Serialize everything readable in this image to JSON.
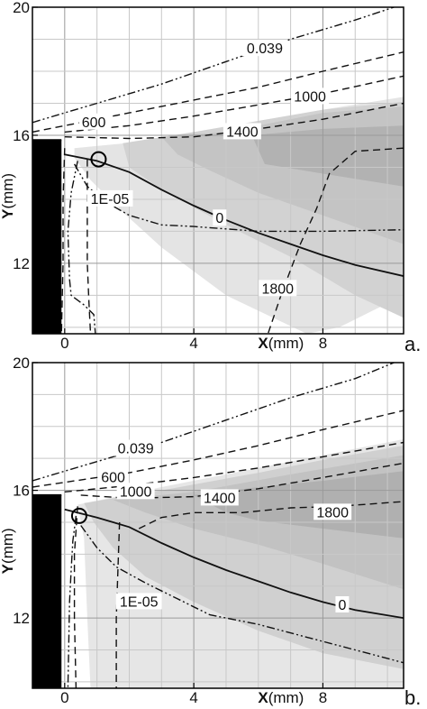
{
  "chart_data": [
    {
      "panel_label": "a.",
      "type": "contour",
      "xlabel": {
        "symbol": "X",
        "unit": "(mm)"
      },
      "ylabel": {
        "symbol": "Y",
        "unit": "(mm)"
      },
      "xlim": [
        -1,
        10.5
      ],
      "ylim": [
        9.8,
        20
      ],
      "x_ticks": [
        0,
        4,
        8
      ],
      "y_ticks": [
        12,
        16,
        20
      ],
      "grid": true,
      "solid_wall": {
        "x_max": -0.1,
        "y_max": 15.85,
        "color": "#000000"
      },
      "marker": {
        "shape": "circle",
        "x": 1.05,
        "y": 15.25
      },
      "fill_levels": [
        {
          "color": "#e4e4e4",
          "polygon": [
            [
              0.3,
              15.6
            ],
            [
              4,
              15.95
            ],
            [
              8,
              16.8
            ],
            [
              10.5,
              17.2
            ],
            [
              10.5,
              11
            ],
            [
              8.5,
              10
            ],
            [
              7.5,
              9.8
            ],
            [
              5,
              11
            ],
            [
              3,
              12.5
            ],
            [
              1.8,
              13.6
            ],
            [
              0.8,
              14.6
            ],
            [
              0.3,
              15.3
            ]
          ]
        },
        {
          "color": "#d2d2d2",
          "polygon": [
            [
              1.8,
              15.75
            ],
            [
              4,
              16.1
            ],
            [
              8,
              16.8
            ],
            [
              10.5,
              17.05
            ],
            [
              10.5,
              10.3
            ],
            [
              9,
              11
            ],
            [
              7,
              12.2
            ],
            [
              5,
              13.2
            ],
            [
              3,
              14.3
            ],
            [
              2,
              15
            ]
          ]
        },
        {
          "color": "#c4c4c4",
          "polygon": [
            [
              3,
              15.95
            ],
            [
              5,
              16.1
            ],
            [
              8,
              16.7
            ],
            [
              10.5,
              16.9
            ],
            [
              10.5,
              12.6
            ],
            [
              8,
              13.5
            ],
            [
              6,
              14.2
            ],
            [
              4.5,
              14.9
            ],
            [
              3.5,
              15.4
            ]
          ]
        },
        {
          "color": "#b2b2b2",
          "polygon": [
            [
              5.8,
              16.0
            ],
            [
              8,
              16.2
            ],
            [
              10.5,
              16.3
            ],
            [
              10.5,
              14.4
            ],
            [
              8,
              14.8
            ],
            [
              6.2,
              15.1
            ]
          ]
        }
      ],
      "contours": [
        {
          "label": "0.039",
          "style": "dashdotdot",
          "points": [
            [
              -1,
              16.4
            ],
            [
              0,
              16.7
            ],
            [
              1,
              17
            ],
            [
              3,
              17.6
            ],
            [
              5,
              18.3
            ],
            [
              7,
              19
            ],
            [
              9,
              19.6
            ],
            [
              10.2,
              20
            ]
          ],
          "label_at": [
            6.2,
            18.7
          ]
        },
        {
          "label": "600",
          "style": "dashed",
          "points": [
            [
              -1,
              16.1
            ],
            [
              0,
              16.3
            ],
            [
              2,
              16.7
            ],
            [
              4,
              17.1
            ],
            [
              6,
              17.5
            ],
            [
              8,
              18
            ],
            [
              10.5,
              18.6
            ]
          ],
          "label_at": [
            0.9,
            16.4
          ]
        },
        {
          "label": "1000",
          "style": "dashed",
          "points": [
            [
              0,
              16.1
            ],
            [
              2,
              16.3
            ],
            [
              4,
              16.6
            ],
            [
              6,
              16.95
            ],
            [
              8,
              17.3
            ],
            [
              10.5,
              17.85
            ]
          ],
          "label_at": [
            7.6,
            17.2
          ]
        },
        {
          "label": "1400",
          "style": "dashed",
          "points": [
            [
              0,
              15.95
            ],
            [
              2,
              15.9
            ],
            [
              4,
              15.95
            ],
            [
              6,
              16.2
            ],
            [
              8,
              16.5
            ],
            [
              10.5,
              17.0
            ]
          ],
          "label_at": [
            5.5,
            16.1
          ]
        },
        {
          "label": "0",
          "style": "solid",
          "points": [
            [
              0,
              15.4
            ],
            [
              1,
              15.2
            ],
            [
              2,
              14.85
            ],
            [
              3,
              14.3
            ],
            [
              4,
              13.8
            ],
            [
              5,
              13.35
            ],
            [
              6,
              12.95
            ],
            [
              7,
              12.6
            ],
            [
              8,
              12.25
            ],
            [
              9,
              11.95
            ],
            [
              10.5,
              11.6
            ]
          ],
          "label_at": [
            4.8,
            13.4
          ]
        },
        {
          "label": "1E-05",
          "style": "dashdotdot",
          "points": [
            [
              0.3,
              15.1
            ],
            [
              0.7,
              14.4
            ],
            [
              1.3,
              13.9
            ],
            [
              2,
              13.5
            ],
            [
              3,
              13.2
            ],
            [
              4,
              13.15
            ],
            [
              6,
              13.0
            ],
            [
              8,
              13.0
            ],
            [
              10.5,
              13.05
            ]
          ],
          "label_at": [
            1.4,
            14.0
          ]
        },
        {
          "label": "1800",
          "style": "dashed",
          "points": [
            [
              10.5,
              15.6
            ],
            [
              9,
              15.5
            ],
            [
              8.2,
              14.8
            ],
            [
              7.8,
              13.7
            ],
            [
              7.3,
              12.6
            ],
            [
              6.7,
              11
            ],
            [
              6.3,
              9.8
            ]
          ],
          "label_at": [
            6.6,
            11.2
          ]
        },
        {
          "label": "",
          "style": "dashdotdot",
          "points": [
            [
              0.4,
              15.2
            ],
            [
              0.2,
              14.2
            ],
            [
              0.1,
              13
            ],
            [
              0.15,
              11.5
            ],
            [
              0.2,
              11
            ],
            [
              0.6,
              10.7
            ],
            [
              0.9,
              10.4
            ],
            [
              0.95,
              9.8
            ]
          ]
        },
        {
          "label": "",
          "style": "dashed",
          "points": [
            [
              0,
              15.6
            ],
            [
              -0.05,
              14
            ],
            [
              -0.05,
              12
            ],
            [
              -0.1,
              9.8
            ]
          ]
        },
        {
          "label": "",
          "style": "dashed",
          "points": [
            [
              0.7,
              15.25
            ],
            [
              0.7,
              14
            ],
            [
              0.7,
              12
            ],
            [
              0.75,
              10.8
            ],
            [
              0.8,
              9.8
            ]
          ]
        }
      ]
    },
    {
      "panel_label": "b.",
      "type": "contour",
      "xlabel": {
        "symbol": "X",
        "unit": "(mm)"
      },
      "ylabel": {
        "symbol": "Y",
        "unit": "(mm)"
      },
      "xlim": [
        -1,
        10.5
      ],
      "ylim": [
        9.8,
        20
      ],
      "x_ticks": [
        0,
        4,
        8
      ],
      "y_ticks": [
        12,
        16,
        20
      ],
      "grid": true,
      "solid_wall": {
        "x_max": -0.1,
        "y_max": 15.85,
        "color": "#000000"
      },
      "marker": {
        "shape": "circle",
        "x": 0.45,
        "y": 15.2
      },
      "fill_levels": [
        {
          "color": "#e6e6e6",
          "polygon": [
            [
              0.4,
              15.55
            ],
            [
              3,
              16.1
            ],
            [
              6,
              16.7
            ],
            [
              8,
              17.1
            ],
            [
              10.5,
              17.6
            ],
            [
              10.5,
              9.8
            ],
            [
              0.8,
              9.8
            ],
            [
              0.7,
              12
            ],
            [
              0.6,
              14.5
            ]
          ]
        },
        {
          "color": "#d0d0d0",
          "polygon": [
            [
              0.6,
              15.6
            ],
            [
              3,
              16.0
            ],
            [
              6,
              16.55
            ],
            [
              8,
              16.95
            ],
            [
              10.5,
              17.4
            ],
            [
              10.5,
              10.4
            ],
            [
              8,
              10.9
            ],
            [
              6,
              11.6
            ],
            [
              4,
              12.5
            ],
            [
              2.5,
              13.3
            ],
            [
              1.5,
              14.2
            ],
            [
              0.9,
              15
            ]
          ]
        },
        {
          "color": "#c2c2c2",
          "polygon": [
            [
              1.5,
              15.7
            ],
            [
              4,
              15.95
            ],
            [
              7,
              16.5
            ],
            [
              10.5,
              17.1
            ],
            [
              10.5,
              12.9
            ],
            [
              8,
              13.7
            ],
            [
              6,
              14.3
            ],
            [
              4,
              14.8
            ],
            [
              2.5,
              15.3
            ]
          ]
        },
        {
          "color": "#b0b0b0",
          "polygon": [
            [
              4,
              15.85
            ],
            [
              6,
              16.1
            ],
            [
              8,
              16.3
            ],
            [
              10.5,
              16.6
            ],
            [
              10.5,
              14.5
            ],
            [
              8,
              14.8
            ],
            [
              6,
              15.05
            ],
            [
              5,
              15.3
            ]
          ]
        }
      ],
      "contours": [
        {
          "label": "0.039",
          "style": "dashdotdot",
          "points": [
            [
              -1,
              16.3
            ],
            [
              0,
              16.6
            ],
            [
              1,
              16.9
            ],
            [
              3,
              17.5
            ],
            [
              5,
              18.2
            ],
            [
              7,
              18.9
            ],
            [
              9,
              19.5
            ],
            [
              10.2,
              20
            ]
          ],
          "label_at": [
            2.2,
            17.3
          ]
        },
        {
          "label": "600",
          "style": "dashed",
          "points": [
            [
              -1,
              16.1
            ],
            [
              0,
              16.25
            ],
            [
              2,
              16.55
            ],
            [
              4,
              16.95
            ],
            [
              6,
              17.4
            ],
            [
              8,
              17.9
            ],
            [
              10.5,
              18.5
            ]
          ],
          "label_at": [
            1.5,
            16.4
          ]
        },
        {
          "label": "1000",
          "style": "dashed",
          "points": [
            [
              0,
              15.95
            ],
            [
              2,
              16.15
            ],
            [
              4,
              16.4
            ],
            [
              6,
              16.7
            ],
            [
              8,
              17.05
            ],
            [
              10.5,
              17.5
            ]
          ],
          "label_at": [
            2.2,
            15.95
          ]
        },
        {
          "label": "1400",
          "style": "dashed",
          "points": [
            [
              0.5,
              15.85
            ],
            [
              2,
              15.75
            ],
            [
              4,
              15.8
            ],
            [
              6,
              16.05
            ],
            [
              8,
              16.4
            ],
            [
              10.5,
              16.85
            ]
          ],
          "label_at": [
            4.8,
            15.75
          ]
        },
        {
          "label": "1800",
          "style": "dashed",
          "points": [
            [
              2.3,
              14.8
            ],
            [
              3,
              15.15
            ],
            [
              4,
              15.3
            ],
            [
              5.5,
              15.3
            ],
            [
              7,
              15.45
            ],
            [
              8.5,
              15.5
            ],
            [
              10.5,
              15.65
            ]
          ],
          "label_at": [
            8.3,
            15.3
          ]
        },
        {
          "label": "0",
          "style": "solid",
          "points": [
            [
              0,
              15.4
            ],
            [
              1,
              15.15
            ],
            [
              2,
              14.85
            ],
            [
              3,
              14.35
            ],
            [
              4,
              13.9
            ],
            [
              5,
              13.5
            ],
            [
              6,
              13.15
            ],
            [
              7,
              12.8
            ],
            [
              8,
              12.5
            ],
            [
              9,
              12.25
            ],
            [
              10.5,
              12.0
            ]
          ],
          "label_at": [
            8.6,
            12.4
          ]
        },
        {
          "label": "1E-05",
          "style": "dashdotdot",
          "points": [
            [
              0.5,
              14.9
            ],
            [
              1,
              14.2
            ],
            [
              1.6,
              13.6
            ],
            [
              2.5,
              13.1
            ],
            [
              3.5,
              12.6
            ],
            [
              4.5,
              12.1
            ],
            [
              6,
              11.8
            ],
            [
              7.5,
              11.4
            ],
            [
              9,
              11.0
            ],
            [
              10.5,
              10.6
            ]
          ],
          "label_at": [
            2.3,
            12.5
          ]
        },
        {
          "label": "",
          "style": "dashed",
          "points": [
            [
              1.7,
              15.0
            ],
            [
              1.65,
              13.5
            ],
            [
              1.6,
              12
            ],
            [
              1.6,
              9.8
            ]
          ],
          "label_at": [
            1.6,
            10.6
          ]
        },
        {
          "label": "",
          "style": "dashed",
          "points": [
            [
              0.4,
              15.5
            ],
            [
              0.3,
              14
            ],
            [
              0.3,
              12
            ],
            [
              0.35,
              9.8
            ]
          ]
        },
        {
          "label": "",
          "style": "dashdotdot",
          "points": [
            [
              0.35,
              15.2
            ],
            [
              0.25,
              14.4
            ],
            [
              0.2,
              13.5
            ],
            [
              0.15,
              12.5
            ],
            [
              0.1,
              9.8
            ]
          ]
        }
      ]
    }
  ]
}
